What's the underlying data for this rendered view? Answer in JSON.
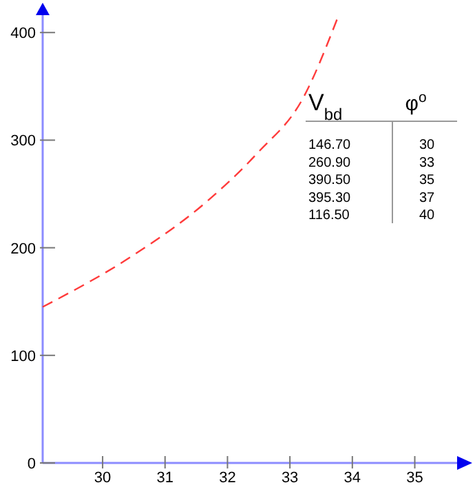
{
  "chart_data": {
    "type": "line",
    "x": [
      29.04,
      30.49,
      31.67,
      32.48,
      33.21,
      33.76
    ],
    "series": [
      {
        "color": "#ff3b3b",
        "values": [
          145,
          193,
          243,
          288,
          339,
          413
        ]
      }
    ],
    "xlim": [
      29.04,
      35.7
    ],
    "xticks": [
      30,
      31,
      32,
      33,
      34,
      35
    ],
    "ylim": [
      0,
      420
    ],
    "yticks": [
      0,
      100,
      200,
      300,
      400
    ],
    "line_style": "dashed",
    "marker": "none",
    "grid": false,
    "annotations": [
      "V$_{bd}$",
      "φ$^{o}$",
      "146.70",
      "30",
      "260.90",
      "33",
      "390.50",
      "35",
      "395.30",
      "37",
      "116.50",
      "40"
    ]
  }
}
